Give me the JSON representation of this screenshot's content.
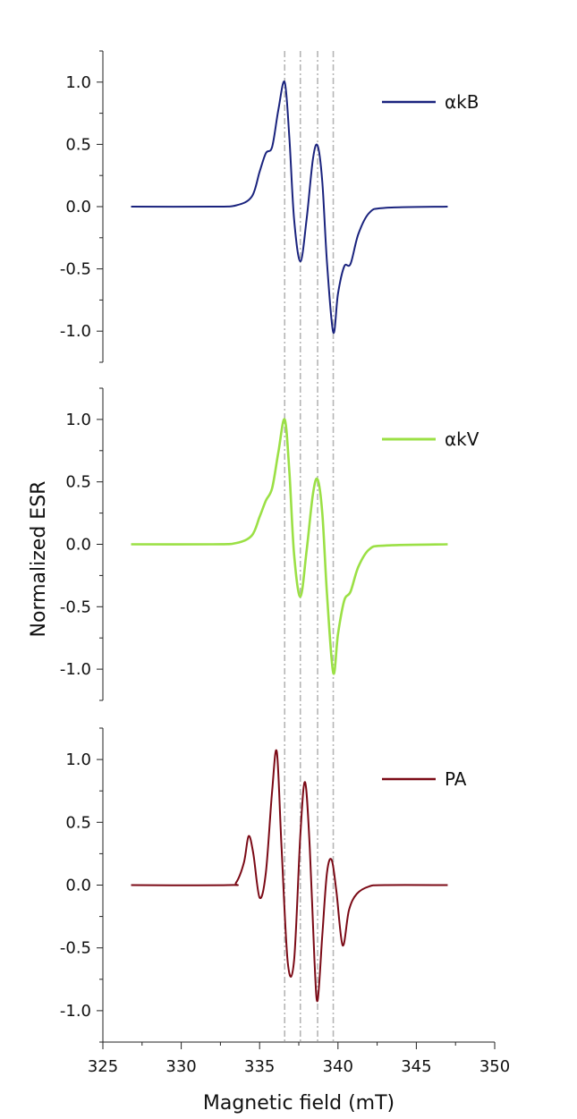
{
  "chart_data": {
    "type": "line",
    "ylabel": "Normalized ESR",
    "xlabel": "Magnetic field (mT)",
    "x_ticks": [
      "325",
      "330",
      "335",
      "340",
      "345",
      "350"
    ],
    "y_ticks": [
      "1.0",
      "0.5",
      "0.0",
      "-0.5",
      "-1.0"
    ],
    "xlim": [
      325,
      350
    ],
    "ylim": [
      -1.25,
      1.25
    ],
    "reference_lines_x": [
      336.6,
      337.6,
      338.7,
      339.7
    ],
    "panels": [
      {
        "series": [
          {
            "name": "αkB",
            "color": "#1a237e",
            "x": [
              326.8,
              332,
              333.5,
              334.5,
              335.0,
              335.4,
              335.8,
              336.2,
              336.6,
              336.9,
              337.2,
              337.6,
              338.0,
              338.4,
              338.7,
              339.0,
              339.3,
              339.7,
              340.0,
              340.4,
              340.8,
              341.3,
              342.0,
              343.0,
              347.0
            ],
            "y": [
              0,
              0,
              0.01,
              0.08,
              0.28,
              0.43,
              0.48,
              0.78,
              1.0,
              0.55,
              -0.1,
              -0.44,
              -0.1,
              0.38,
              0.49,
              0.2,
              -0.45,
              -1.01,
              -0.7,
              -0.48,
              -0.46,
              -0.22,
              -0.05,
              -0.01,
              0
            ]
          }
        ]
      },
      {
        "series": [
          {
            "name": "αkV",
            "color": "#9be045",
            "x": [
              326.8,
              332,
              333.5,
              334.5,
              335.0,
              335.4,
              335.8,
              336.2,
              336.6,
              336.9,
              337.2,
              337.6,
              338.0,
              338.4,
              338.7,
              339.0,
              339.3,
              339.7,
              340.0,
              340.4,
              340.8,
              341.3,
              342.0,
              343.0,
              347.0
            ],
            "y": [
              0,
              0,
              0.01,
              0.07,
              0.22,
              0.35,
              0.45,
              0.74,
              1.0,
              0.58,
              -0.08,
              -0.42,
              -0.05,
              0.4,
              0.52,
              0.25,
              -0.4,
              -1.03,
              -0.72,
              -0.45,
              -0.38,
              -0.18,
              -0.04,
              -0.01,
              0
            ]
          }
        ]
      },
      {
        "series": [
          {
            "name": "PA",
            "color": "#7b0a16",
            "x": [
              326.8,
              333.0,
              333.5,
              334.0,
              334.3,
              334.6,
              335.0,
              335.4,
              335.8,
              336.1,
              336.4,
              336.8,
              337.2,
              337.6,
              337.9,
              338.2,
              338.5,
              338.7,
              339.0,
              339.3,
              339.6,
              339.9,
              340.3,
              340.7,
              341.2,
              342.0,
              343.0,
              347.0
            ],
            "y": [
              0,
              0,
              0.02,
              0.18,
              0.39,
              0.25,
              -0.1,
              0.1,
              0.75,
              1.06,
              0.3,
              -0.62,
              -0.6,
              0.4,
              0.82,
              0.3,
              -0.6,
              -0.92,
              -0.4,
              0.1,
              0.2,
              -0.05,
              -0.48,
              -0.2,
              -0.07,
              -0.01,
              0,
              0
            ]
          }
        ]
      }
    ]
  }
}
